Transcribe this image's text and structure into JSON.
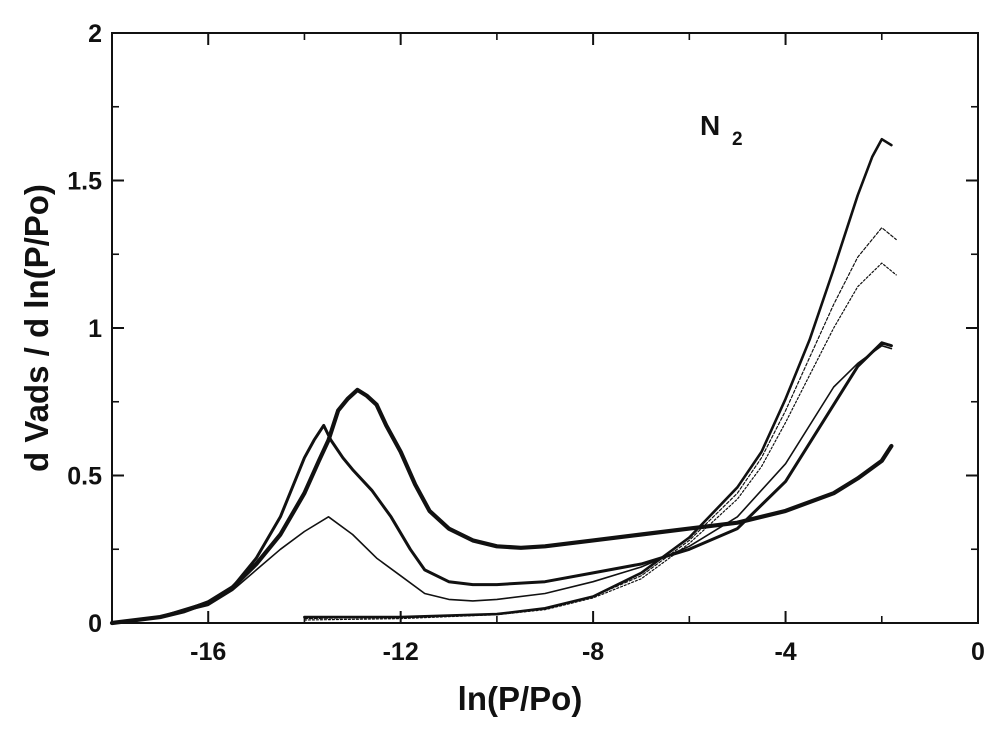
{
  "chart_data": {
    "type": "line",
    "title": "",
    "xlabel": "ln(P/Po)",
    "ylabel": "d Vads / d ln(P/Po)",
    "xlim": [
      -18,
      0
    ],
    "ylim": [
      0,
      2
    ],
    "xticks": [
      -16,
      -12,
      -8,
      -4,
      0
    ],
    "xtick_labels": [
      "-16",
      "-12",
      "-8",
      "-4",
      "0"
    ],
    "yticks": [
      0,
      0.5,
      1,
      1.5,
      2
    ],
    "ytick_labels": [
      "0",
      "0.5",
      "1",
      "1.5",
      "2"
    ],
    "grid": false,
    "annotation": {
      "text": "N",
      "subscript": "2"
    },
    "series": [
      {
        "name": "curve-a-thickest",
        "width": 4.2,
        "x": [
          -18,
          -17,
          -16.5,
          -16,
          -15.5,
          -15,
          -14.5,
          -14,
          -13.7,
          -13.5,
          -13.3,
          -13.1,
          -12.9,
          -12.7,
          -12.5,
          -12.3,
          -12,
          -11.7,
          -11.4,
          -11,
          -10.5,
          -10,
          -9.5,
          -9,
          -8,
          -7,
          -6,
          -5,
          -4,
          -3,
          -2.5,
          -2,
          -1.8
        ],
        "y": [
          0,
          0.02,
          0.04,
          0.07,
          0.12,
          0.2,
          0.3,
          0.44,
          0.55,
          0.62,
          0.72,
          0.76,
          0.79,
          0.77,
          0.74,
          0.67,
          0.58,
          0.47,
          0.38,
          0.32,
          0.28,
          0.26,
          0.255,
          0.26,
          0.28,
          0.3,
          0.32,
          0.34,
          0.38,
          0.44,
          0.49,
          0.55,
          0.6
        ]
      },
      {
        "name": "curve-b",
        "width": 3.0,
        "x": [
          -18,
          -17,
          -16,
          -15.5,
          -15,
          -14.5,
          -14.2,
          -14,
          -13.8,
          -13.6,
          -13.45,
          -13.2,
          -13,
          -12.6,
          -12.2,
          -11.8,
          -11.5,
          -11,
          -10.5,
          -10,
          -9,
          -8,
          -7,
          -6,
          -5,
          -4,
          -3,
          -2.5,
          -2,
          -1.8
        ],
        "y": [
          0,
          0.02,
          0.07,
          0.12,
          0.22,
          0.36,
          0.48,
          0.56,
          0.62,
          0.67,
          0.62,
          0.56,
          0.52,
          0.45,
          0.36,
          0.25,
          0.18,
          0.14,
          0.13,
          0.13,
          0.14,
          0.17,
          0.2,
          0.25,
          0.32,
          0.48,
          0.74,
          0.87,
          0.95,
          0.94
        ]
      },
      {
        "name": "curve-c-thin",
        "width": 1.6,
        "x": [
          -18,
          -17,
          -16,
          -15.5,
          -15,
          -14.5,
          -14,
          -13.5,
          -13,
          -12.5,
          -12,
          -11.5,
          -11,
          -10.5,
          -10,
          -9,
          -8,
          -7,
          -6,
          -5,
          -4,
          -3,
          -2.5,
          -2,
          -1.8
        ],
        "y": [
          0,
          0.02,
          0.06,
          0.11,
          0.18,
          0.25,
          0.31,
          0.36,
          0.3,
          0.22,
          0.16,
          0.1,
          0.08,
          0.075,
          0.08,
          0.1,
          0.14,
          0.19,
          0.26,
          0.36,
          0.54,
          0.8,
          0.88,
          0.94,
          0.93
        ]
      },
      {
        "name": "curve-d-steep",
        "width": 2.6,
        "x": [
          -14,
          -13,
          -12,
          -11,
          -10,
          -9,
          -8,
          -7,
          -6,
          -5,
          -4.5,
          -4,
          -3.5,
          -3,
          -2.5,
          -2.2,
          -2,
          -1.8
        ],
        "y": [
          0.02,
          0.02,
          0.02,
          0.025,
          0.03,
          0.05,
          0.09,
          0.17,
          0.29,
          0.46,
          0.58,
          0.76,
          0.96,
          1.2,
          1.45,
          1.58,
          1.64,
          1.62
        ]
      },
      {
        "name": "curve-e-dotted",
        "width": 1.2,
        "dash": "3,2",
        "x": [
          -14,
          -12,
          -10,
          -9,
          -8,
          -7,
          -6,
          -5,
          -4.5,
          -4,
          -3.5,
          -3,
          -2.5,
          -2,
          -1.7
        ],
        "y": [
          0.015,
          0.02,
          0.03,
          0.05,
          0.09,
          0.16,
          0.28,
          0.44,
          0.56,
          0.72,
          0.9,
          1.08,
          1.24,
          1.34,
          1.3
        ]
      },
      {
        "name": "curve-f-dotted",
        "width": 1.2,
        "dash": "2,2",
        "x": [
          -14,
          -12,
          -10,
          -9,
          -8,
          -7,
          -6,
          -5,
          -4.5,
          -4,
          -3.5,
          -3,
          -2.5,
          -2,
          -1.7
        ],
        "y": [
          0.01,
          0.015,
          0.028,
          0.045,
          0.085,
          0.15,
          0.27,
          0.42,
          0.53,
          0.68,
          0.84,
          1.0,
          1.14,
          1.22,
          1.18
        ]
      }
    ]
  }
}
